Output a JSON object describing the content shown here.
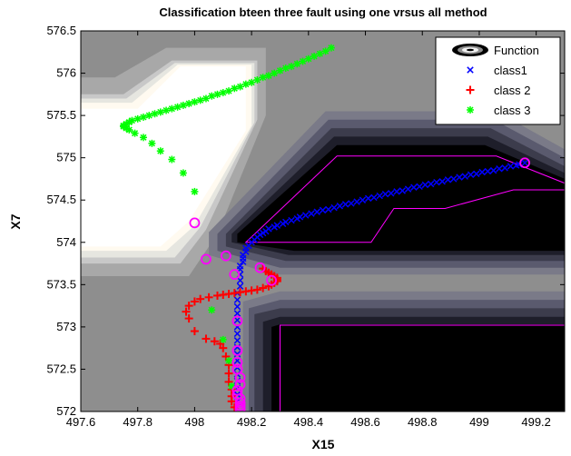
{
  "chart_data": {
    "type": "scatter",
    "title": "Classification bteen three fault  using one vrsus all method",
    "xlabel": "X15",
    "ylabel": "X7",
    "xlim": [
      497.6,
      499.3
    ],
    "ylim": [
      572,
      576.5
    ],
    "xticks": [
      "497.6",
      "497.8",
      "498",
      "498.2",
      "498.4",
      "498.6",
      "498.8",
      "499",
      "499.2"
    ],
    "yticks": [
      "572",
      "572.5",
      "573",
      "573.5",
      "574",
      "574.5",
      "575",
      "575.5",
      "576",
      "576.5"
    ],
    "grid": false,
    "legend_position": "top-right",
    "legend": [
      "Function",
      "class1",
      "class 2",
      "class 3"
    ],
    "colors": {
      "class1": "#0000ff",
      "class2": "#ff0000",
      "class3": "#00ff00",
      "support_vectors": "#ff00ff",
      "decision_boundary": "#ff00ff",
      "levels": [
        "#000000",
        "#1e1e2a",
        "#3c3c4c",
        "#5a5a6e",
        "#7a7a88",
        "#8e8e8e",
        "#a8a8a8",
        "#c8c8c8",
        "#e6e6e0",
        "#fffaf0",
        "#ffffff"
      ]
    },
    "series": [
      {
        "name": "class1",
        "marker": "x",
        "x": [
          498.15,
          498.15,
          498.15,
          498.15,
          498.15,
          498.15,
          498.15,
          498.15,
          498.15,
          498.15,
          498.15,
          498.15,
          498.15,
          498.15,
          498.15,
          498.15,
          498.15,
          498.16,
          498.16,
          498.16,
          498.16,
          498.16,
          498.17,
          498.17,
          498.17,
          498.18,
          498.18,
          498.19,
          498.2,
          498.21,
          498.22,
          498.23,
          498.24,
          498.25,
          498.26,
          498.28,
          498.29,
          498.31,
          498.32,
          498.34,
          498.36,
          498.37,
          498.39,
          498.41,
          498.43,
          498.45,
          498.47,
          498.49,
          498.51,
          498.53,
          498.55,
          498.57,
          498.59,
          498.61,
          498.63,
          498.65,
          498.67,
          498.69,
          498.71,
          498.73,
          498.75,
          498.77,
          498.79,
          498.81,
          498.83,
          498.85,
          498.87,
          498.89,
          498.91,
          498.93,
          498.95,
          498.97,
          498.99,
          499.01,
          499.03,
          499.05,
          499.07,
          499.09,
          499.11,
          499.13,
          499.14,
          499.16
        ],
        "y": [
          572.12,
          572.2,
          572.28,
          572.36,
          572.44,
          572.52,
          572.6,
          572.68,
          572.76,
          572.84,
          572.92,
          573.0,
          573.08,
          573.16,
          573.24,
          573.32,
          573.4,
          573.48,
          573.55,
          573.62,
          573.68,
          573.72,
          573.77,
          573.81,
          573.85,
          573.89,
          573.93,
          573.96,
          574.0,
          574.03,
          574.06,
          574.09,
          574.11,
          574.13,
          574.16,
          574.18,
          574.2,
          574.22,
          574.24,
          574.26,
          574.28,
          574.3,
          574.32,
          574.34,
          574.36,
          574.38,
          574.39,
          574.41,
          574.43,
          574.45,
          574.46,
          574.48,
          574.5,
          574.52,
          574.53,
          574.55,
          574.57,
          574.58,
          574.6,
          574.61,
          574.63,
          574.65,
          574.66,
          574.68,
          574.69,
          574.71,
          574.72,
          574.74,
          574.75,
          574.77,
          574.78,
          574.8,
          574.81,
          574.83,
          574.84,
          574.85,
          574.87,
          574.88,
          574.9,
          574.91,
          574.92,
          574.94
        ]
      },
      {
        "name": "class 2",
        "marker": "plus",
        "x": [
          498.14,
          498.13,
          498.13,
          498.13,
          498.12,
          498.12,
          498.12,
          498.11,
          498.1,
          498.09,
          498.07,
          498.04,
          498.0,
          497.98,
          497.97,
          497.98,
          498.0,
          498.02,
          498.05,
          498.08,
          498.1,
          498.12,
          498.14,
          498.16,
          498.18,
          498.2,
          498.22,
          498.24,
          498.26,
          498.27,
          498.28,
          498.29,
          498.29,
          498.29,
          498.28,
          498.27,
          498.26,
          498.25,
          498.24
        ],
        "y": [
          572.05,
          572.12,
          572.18,
          572.26,
          572.35,
          572.45,
          572.55,
          572.65,
          572.75,
          572.8,
          572.83,
          572.86,
          572.95,
          573.1,
          573.18,
          573.25,
          573.3,
          573.33,
          573.35,
          573.37,
          573.38,
          573.39,
          573.4,
          573.41,
          573.42,
          573.43,
          573.44,
          573.46,
          573.48,
          573.5,
          573.52,
          573.54,
          573.56,
          573.58,
          573.6,
          573.62,
          573.64,
          573.66,
          573.69
        ]
      },
      {
        "name": "class 3",
        "marker": "asterisk",
        "x": [
          498.13,
          498.12,
          498.1,
          498.06,
          498.0,
          497.96,
          497.92,
          497.88,
          497.85,
          497.82,
          497.79,
          497.77,
          497.76,
          497.75,
          497.75,
          497.76,
          497.77,
          497.78,
          497.8,
          497.82,
          497.84,
          497.86,
          497.88,
          497.9,
          497.92,
          497.94,
          497.96,
          497.98,
          498.0,
          498.02,
          498.04,
          498.06,
          498.08,
          498.1,
          498.12,
          498.14,
          498.16,
          498.18,
          498.2,
          498.22,
          498.24,
          498.26,
          498.28,
          498.3,
          498.32,
          498.34,
          498.36,
          498.38,
          498.4,
          498.42,
          498.44,
          498.46,
          498.48
        ],
        "y": [
          572.3,
          572.6,
          572.85,
          573.2,
          574.6,
          574.82,
          574.98,
          575.08,
          575.17,
          575.24,
          575.29,
          575.33,
          575.35,
          575.37,
          575.38,
          575.4,
          575.42,
          575.44,
          575.46,
          575.48,
          575.5,
          575.52,
          575.54,
          575.56,
          575.58,
          575.6,
          575.62,
          575.64,
          575.66,
          575.68,
          575.7,
          575.73,
          575.75,
          575.77,
          575.79,
          575.82,
          575.84,
          575.87,
          575.89,
          575.92,
          575.95,
          575.97,
          576.0,
          576.03,
          576.06,
          576.08,
          576.11,
          576.14,
          576.17,
          576.2,
          576.23,
          576.26,
          576.3
        ]
      },
      {
        "name": "support vectors",
        "marker": "circle",
        "x": [
          499.16,
          498.0,
          498.04,
          498.11,
          498.14,
          498.23,
          498.27,
          498.15,
          498.15,
          498.15,
          498.15,
          498.16,
          498.16,
          498.15,
          498.15,
          498.16,
          498.16,
          498.16,
          498.16,
          498.16
        ],
        "y": [
          574.94,
          574.23,
          573.8,
          573.84,
          573.62,
          573.7,
          573.55,
          573.07,
          572.72,
          572.58,
          572.5,
          572.4,
          572.32,
          572.25,
          572.2,
          572.15,
          572.1,
          572.07,
          572.04,
          572.02
        ]
      }
    ]
  }
}
